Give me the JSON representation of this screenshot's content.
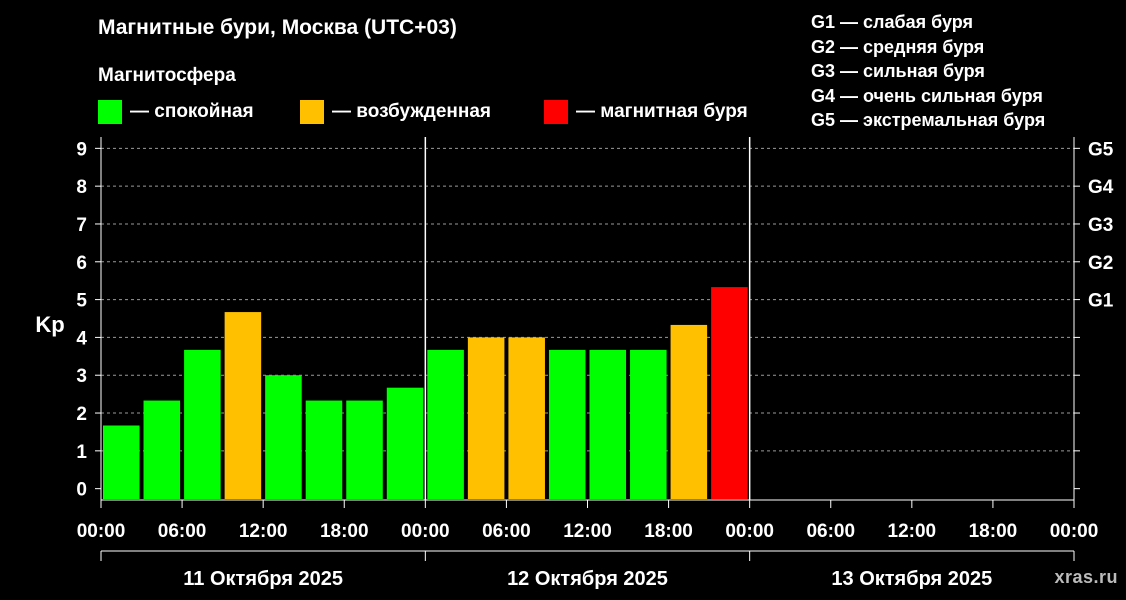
{
  "title": "Магнитные бури, Москва (UTC+03)",
  "subtitle": "Магнитосфера",
  "legend": [
    {
      "color": "#00ff00",
      "label": "— спокойная"
    },
    {
      "color": "#ffc000",
      "label": "— возбужденная"
    },
    {
      "color": "#ff0000",
      "label": "— магнитная буря"
    }
  ],
  "g_legend": [
    "G1 — слабая буря",
    "G2 — средняя буря",
    "G3 — сильная буря",
    "G4 — очень сильная буря",
    "G5 — экстремальная буря"
  ],
  "watermark": "xras.ru",
  "chart_data": {
    "type": "bar",
    "ylabel": "Kp",
    "ylim": [
      -0.3,
      9.3
    ],
    "y_ticks": [
      0,
      1,
      2,
      3,
      4,
      5,
      6,
      7,
      8,
      9
    ],
    "right_axis": [
      {
        "y": 5,
        "label": "G1"
      },
      {
        "y": 6,
        "label": "G2"
      },
      {
        "y": 7,
        "label": "G3"
      },
      {
        "y": 8,
        "label": "G4"
      },
      {
        "y": 9,
        "label": "G5"
      }
    ],
    "x_tick_labels": [
      "00:00",
      "06:00",
      "12:00",
      "18:00",
      "00:00",
      "06:00",
      "12:00",
      "18:00",
      "00:00",
      "06:00",
      "12:00",
      "18:00",
      "00:00"
    ],
    "days": [
      "11 Октября 2025",
      "12 Октября 2025",
      "13 Октября 2025"
    ],
    "bar_hours": 3,
    "values": [
      1.67,
      2.33,
      3.67,
      4.67,
      3.0,
      2.33,
      2.33,
      2.67,
      3.67,
      4.0,
      4.0,
      3.67,
      3.67,
      3.67,
      4.33,
      5.33
    ],
    "colors": [
      "#00ff00",
      "#00ff00",
      "#00ff00",
      "#ffc000",
      "#00ff00",
      "#00ff00",
      "#00ff00",
      "#00ff00",
      "#00ff00",
      "#ffc000",
      "#ffc000",
      "#00ff00",
      "#00ff00",
      "#00ff00",
      "#ffc000",
      "#ff0000"
    ],
    "grid": "dashed horizontal at integer Kp",
    "day_separators": true
  }
}
